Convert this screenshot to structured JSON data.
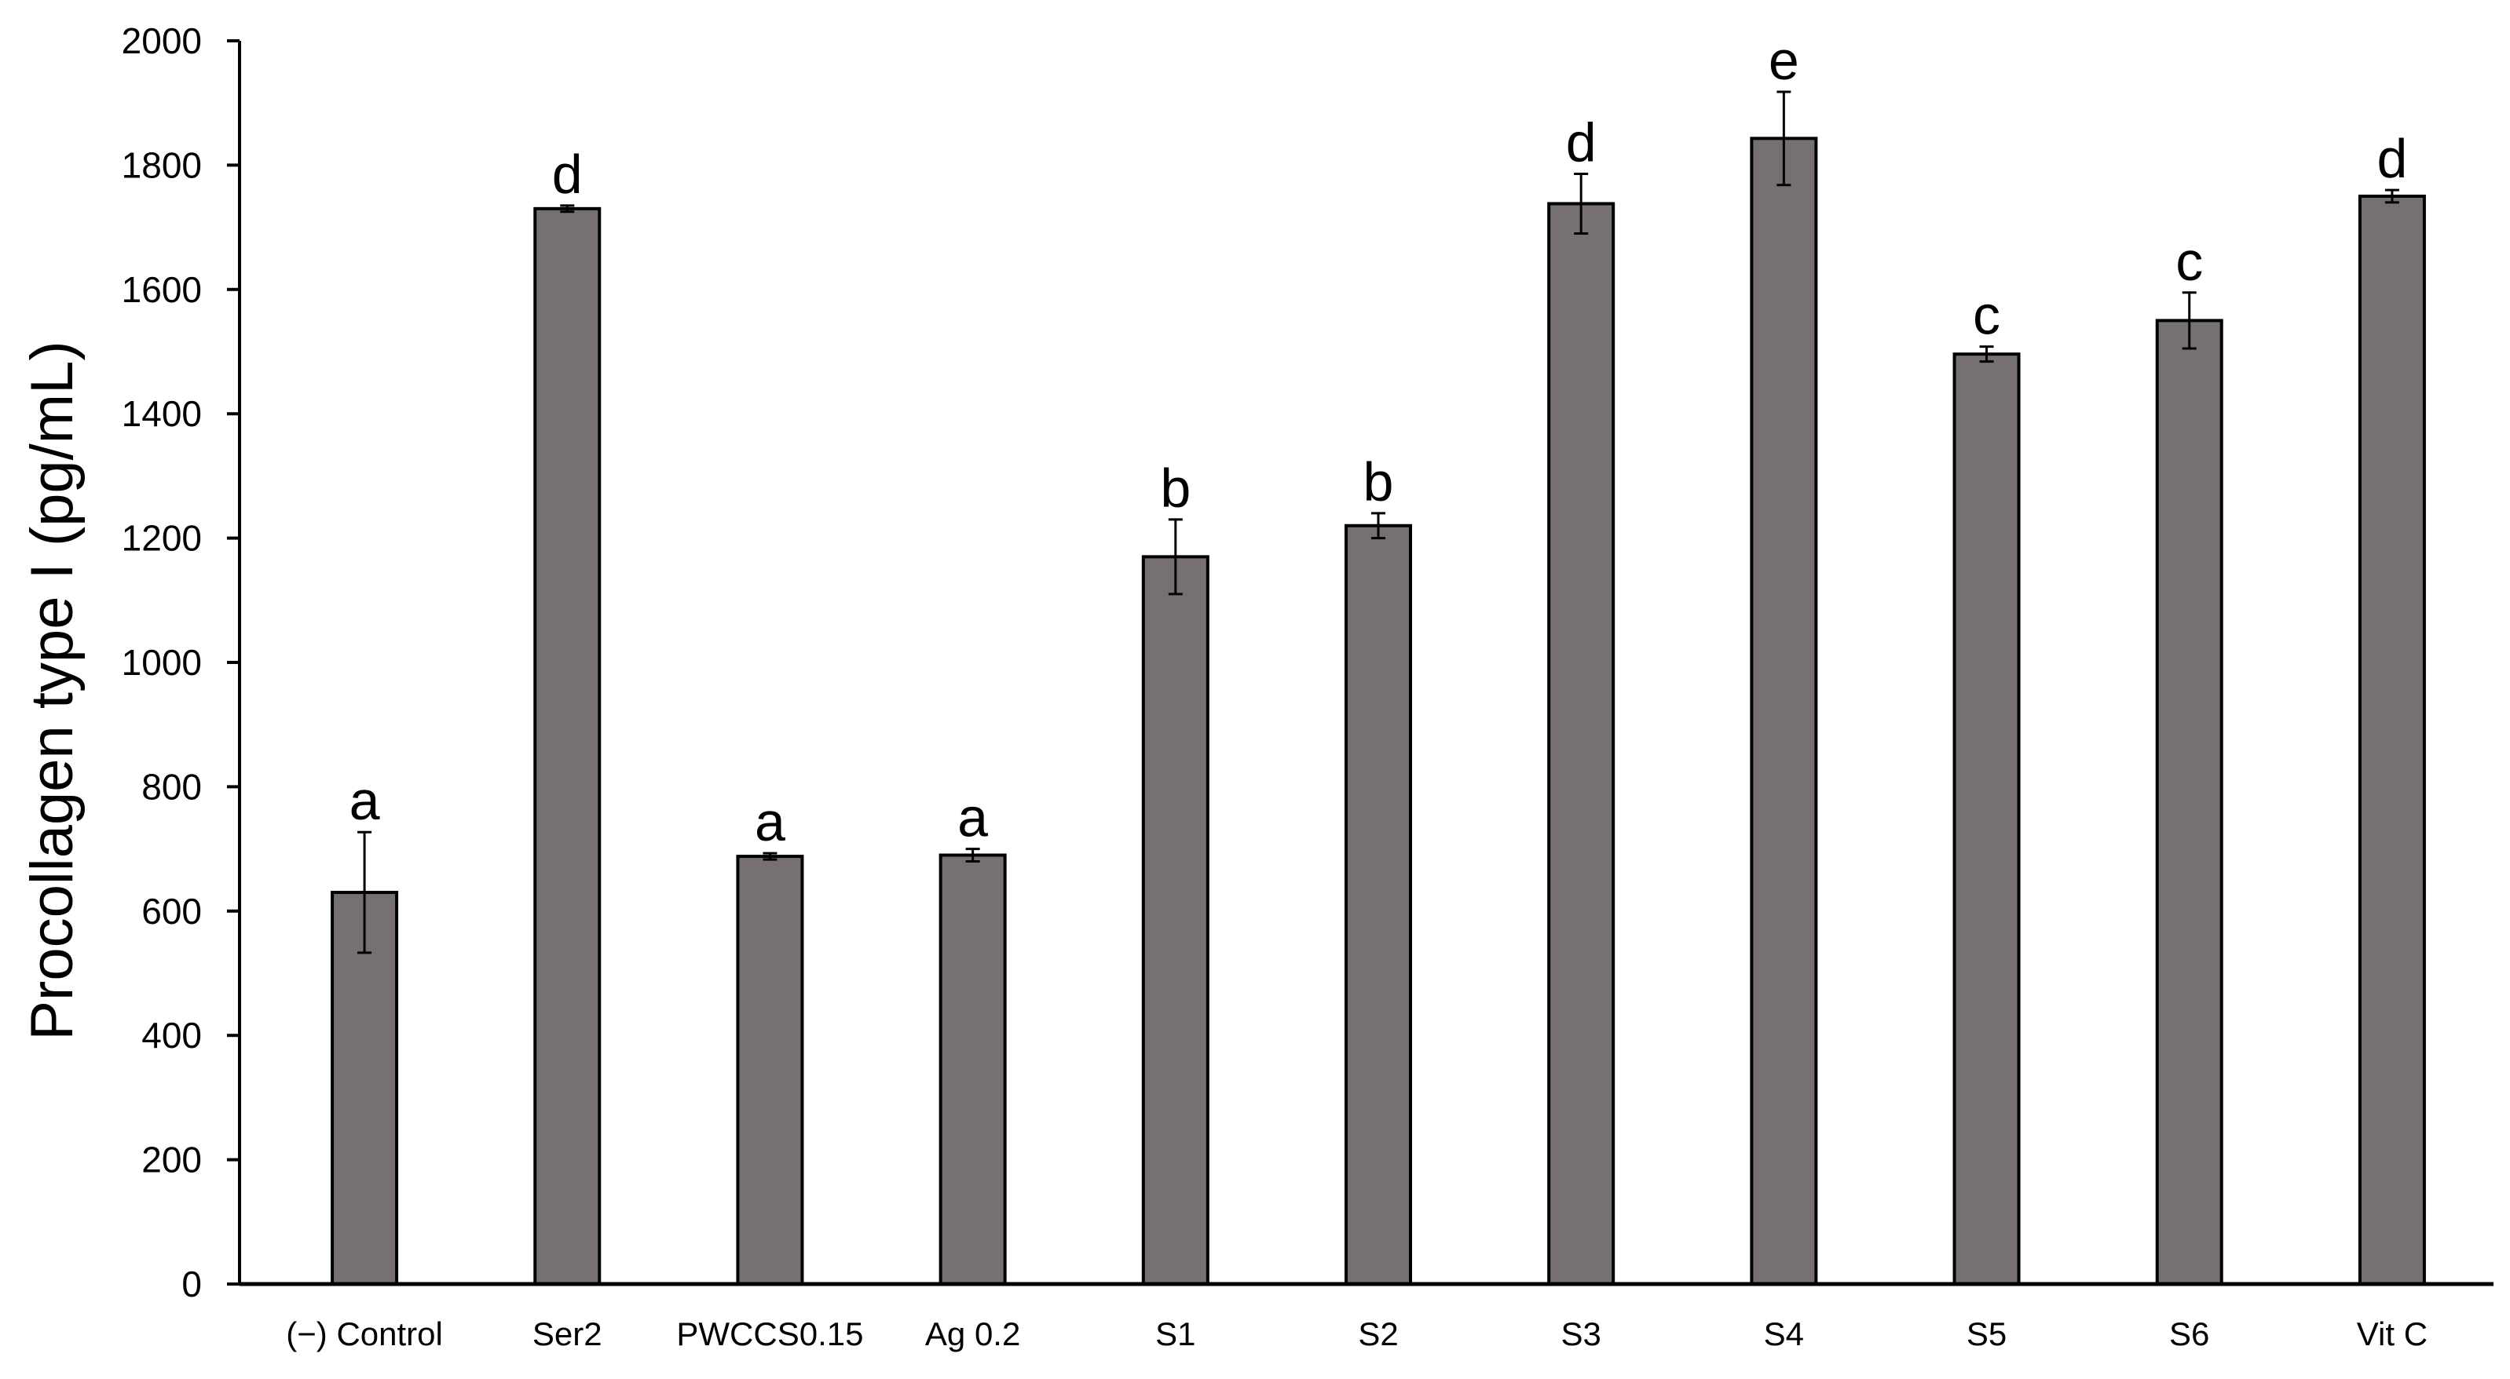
{
  "chart_data": {
    "type": "bar",
    "title": "",
    "xlabel": "",
    "ylabel": "Procollagen type I (pg/mL)",
    "ylim": [
      0,
      2000
    ],
    "yticks": [
      0,
      200,
      400,
      600,
      800,
      1000,
      1200,
      1400,
      1600,
      1800,
      2000
    ],
    "grid": false,
    "legend": "none",
    "bar_color": "#767170",
    "categories": [
      "(−) Control",
      "Ser2",
      "PWCCS0.15",
      "Ag 0.2",
      "S1",
      "S2",
      "S3",
      "S4",
      "S5",
      "S6",
      "Vit C"
    ],
    "values": [
      630,
      1730,
      688,
      690,
      1170,
      1220,
      1738,
      1843,
      1496,
      1550,
      1750
    ],
    "errors": [
      97,
      5,
      5,
      10,
      60,
      20,
      48,
      75,
      12,
      45,
      10
    ],
    "letters": [
      "a",
      "d",
      "a",
      "a",
      "b",
      "b",
      "d",
      "e",
      "c",
      "c",
      "d"
    ]
  }
}
